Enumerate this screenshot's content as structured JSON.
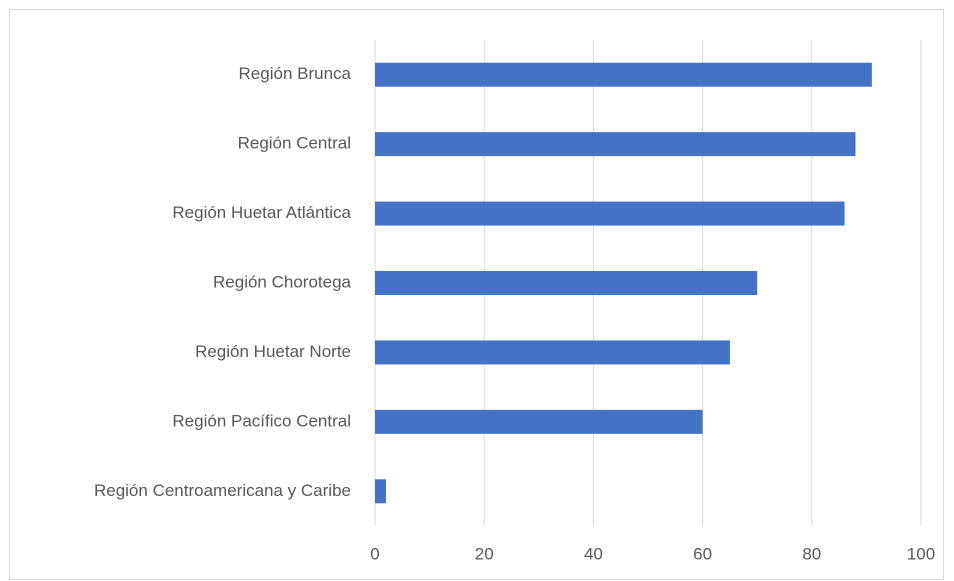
{
  "chart_data": {
    "type": "bar",
    "orientation": "horizontal",
    "categories": [
      "Región Brunca",
      "Región Central",
      "Región Huetar Atlántica",
      "Región Chorotega",
      "Región Huetar Norte",
      "Región Pacífico Central",
      "Región Centroamericana y Caribe"
    ],
    "values": [
      91,
      88,
      86,
      70,
      65,
      60,
      2
    ],
    "color": "#4472c4",
    "xlim": [
      0,
      100
    ],
    "xticks": [
      0,
      20,
      40,
      60,
      80,
      100
    ],
    "grid": true
  }
}
